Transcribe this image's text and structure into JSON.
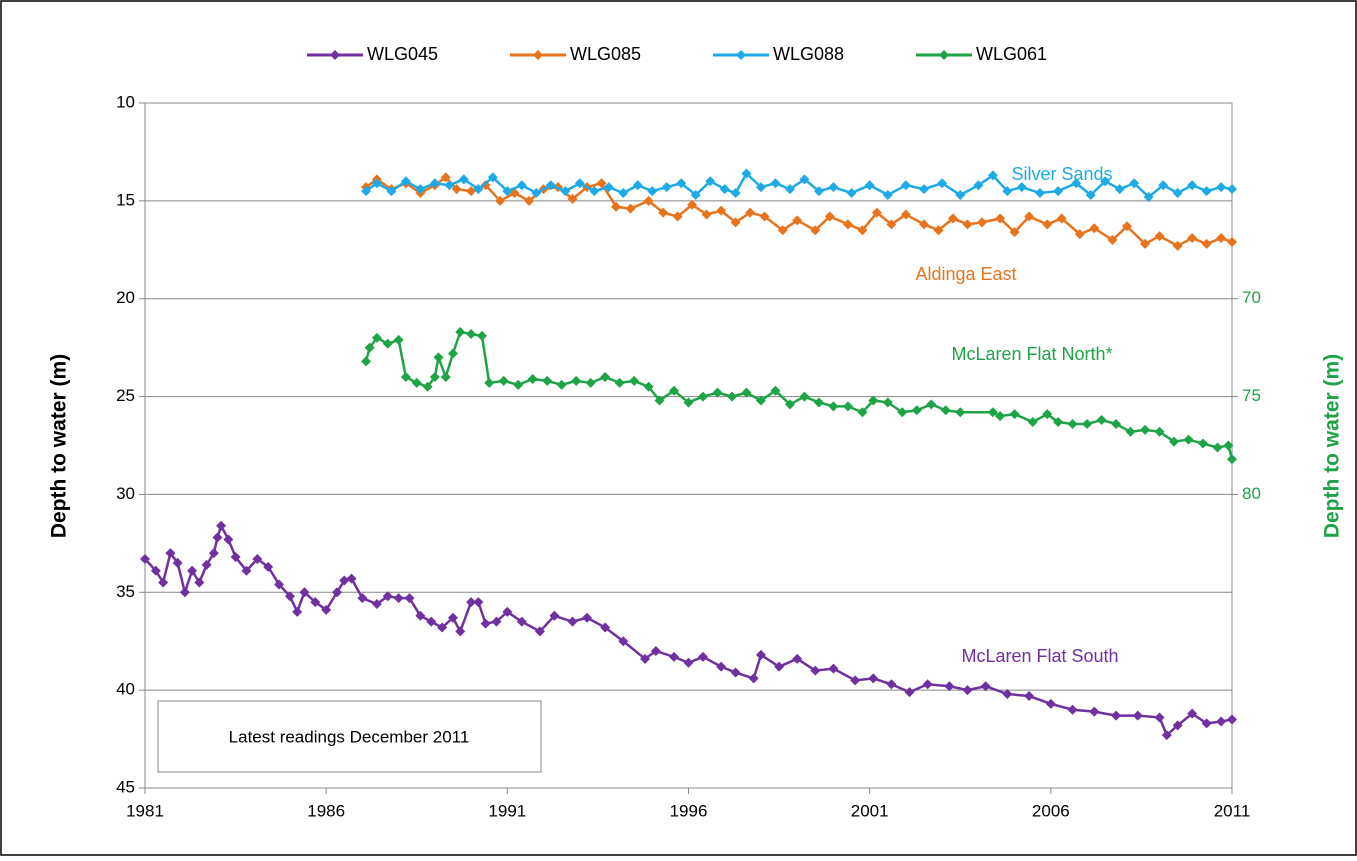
{
  "chart_data": {
    "type": "line",
    "y_axis_label": "Depth to water  (m)",
    "y2_axis_label": "Depth to water  (m)",
    "y2_axis_color": "#1fa347",
    "xlim": [
      1981,
      2011
    ],
    "xticks": [
      1981,
      1986,
      1991,
      1996,
      2001,
      2006,
      2011
    ],
    "ylim": [
      10,
      45
    ],
    "yticks": [
      10,
      15,
      20,
      25,
      30,
      35,
      40,
      45
    ],
    "y_inverted": true,
    "y2lim": [
      60,
      95
    ],
    "y2ticks": [
      70,
      75,
      80
    ],
    "y2_inverted": true,
    "grid": true,
    "legend": "top",
    "series": [
      {
        "name": "WLG045",
        "color": "#7030a0",
        "x": [
          1981,
          1981.3,
          1981.5,
          1981.7,
          1981.9,
          1982.1,
          1982.3,
          1982.5,
          1982.7,
          1982.9,
          1983.0,
          1983.1,
          1983.3,
          1983.5,
          1983.8,
          1984.1,
          1984.4,
          1984.7,
          1985.0,
          1985.2,
          1985.4,
          1985.7,
          1986.0,
          1986.3,
          1986.5,
          1986.7,
          1987.0,
          1987.4,
          1987.7,
          1988.0,
          1988.3,
          1988.6,
          1988.9,
          1989.2,
          1989.5,
          1989.7,
          1990.0,
          1990.2,
          1990.4,
          1990.7,
          1991.0,
          1991.4,
          1991.9,
          1992.3,
          1992.8,
          1993.2,
          1993.7,
          1994.2,
          1994.8,
          1995.1,
          1995.6,
          1996.0,
          1996.4,
          1996.9,
          1997.3,
          1997.8,
          1998.0,
          1998.5,
          1999.0,
          1999.5,
          2000.0,
          2000.6,
          2001.1,
          2001.6,
          2002.1,
          2002.6,
          2003.2,
          2003.7,
          2004.2,
          2004.8,
          2005.4,
          2006.0,
          2006.6,
          2007.2,
          2007.8,
          2008.4,
          2009.0,
          2009.2,
          2009.5,
          2009.9,
          2010.3,
          2010.7,
          2011.0
        ],
        "values": [
          33.3,
          33.9,
          34.5,
          33,
          33.5,
          35,
          33.9,
          34.5,
          33.6,
          33,
          32.2,
          31.6,
          32.3,
          33.2,
          33.9,
          33.3,
          33.7,
          34.6,
          35.2,
          36,
          35,
          35.5,
          35.9,
          35,
          34.4,
          34.3,
          35.3,
          35.6,
          35.2,
          35.3,
          35.3,
          36.2,
          36.5,
          36.8,
          36.3,
          37,
          35.5,
          35.5,
          36.6,
          36.5,
          36,
          36.5,
          37,
          36.2,
          36.5,
          36.3,
          36.8,
          37.5,
          38.4,
          38,
          38.3,
          38.6,
          38.3,
          38.8,
          39.1,
          39.4,
          38.2,
          38.8,
          38.4,
          39,
          38.9,
          39.5,
          39.4,
          39.7,
          40.1,
          39.7,
          39.8,
          40,
          39.8,
          40.2,
          40.3,
          40.7,
          41,
          41.1,
          41.3,
          41.3,
          41.4,
          42.3,
          41.8,
          41.2,
          41.7,
          41.6,
          41.5
        ]
      },
      {
        "name": "WLG085",
        "color": "#e8731c",
        "x": [
          1987.1,
          1987.4,
          1987.8,
          1988.2,
          1988.6,
          1989.0,
          1989.3,
          1989.6,
          1990.0,
          1990.4,
          1990.8,
          1991.2,
          1991.6,
          1992.0,
          1992.4,
          1992.8,
          1993.2,
          1993.6,
          1994.0,
          1994.4,
          1994.9,
          1995.3,
          1995.7,
          1996.1,
          1996.5,
          1996.9,
          1997.3,
          1997.7,
          1998.1,
          1998.6,
          1999.0,
          1999.5,
          1999.9,
          2000.4,
          2000.8,
          2001.2,
          2001.6,
          2002.0,
          2002.5,
          2002.9,
          2003.3,
          2003.7,
          2004.1,
          2004.6,
          2005.0,
          2005.4,
          2005.9,
          2006.3,
          2006.8,
          2007.2,
          2007.7,
          2008.1,
          2008.6,
          2009.0,
          2009.5,
          2009.9,
          2010.3,
          2010.7,
          2011.0
        ],
        "values": [
          14.3,
          13.9,
          14.4,
          14.1,
          14.6,
          14.2,
          13.8,
          14.4,
          14.5,
          14.2,
          15,
          14.6,
          15,
          14.4,
          14.3,
          14.9,
          14.3,
          14.1,
          15.3,
          15.4,
          15,
          15.6,
          15.8,
          15.2,
          15.7,
          15.5,
          16.1,
          15.6,
          15.8,
          16.5,
          16,
          16.5,
          15.8,
          16.2,
          16.5,
          15.6,
          16.2,
          15.7,
          16.2,
          16.5,
          15.9,
          16.2,
          16.1,
          15.9,
          16.6,
          15.8,
          16.2,
          15.9,
          16.7,
          16.4,
          17,
          16.3,
          17.2,
          16.8,
          17.3,
          16.9,
          17.2,
          16.9,
          17.1
        ]
      },
      {
        "name": "WLG088",
        "color": "#1eaae7",
        "x": [
          1987.1,
          1987.4,
          1987.8,
          1988.2,
          1988.6,
          1989.0,
          1989.4,
          1989.8,
          1990.2,
          1990.6,
          1991.0,
          1991.4,
          1991.8,
          1992.2,
          1992.6,
          1993.0,
          1993.4,
          1993.8,
          1994.2,
          1994.6,
          1995.0,
          1995.4,
          1995.8,
          1996.2,
          1996.6,
          1997.0,
          1997.3,
          1997.6,
          1998.0,
          1998.4,
          1998.8,
          1999.2,
          1999.6,
          2000.0,
          2000.5,
          2001.0,
          2001.5,
          2002.0,
          2002.5,
          2003.0,
          2003.5,
          2004.0,
          2004.4,
          2004.8,
          2005.2,
          2005.7,
          2006.2,
          2006.7,
          2007.1,
          2007.5,
          2007.9,
          2008.3,
          2008.7,
          2009.1,
          2009.5,
          2009.9,
          2010.3,
          2010.7,
          2011.0
        ],
        "values": [
          14.5,
          14.1,
          14.5,
          14,
          14.4,
          14.1,
          14.2,
          13.9,
          14.4,
          13.8,
          14.5,
          14.2,
          14.6,
          14.2,
          14.5,
          14.1,
          14.5,
          14.3,
          14.6,
          14.2,
          14.5,
          14.3,
          14.1,
          14.7,
          14,
          14.4,
          14.6,
          13.6,
          14.3,
          14.1,
          14.4,
          13.9,
          14.5,
          14.3,
          14.6,
          14.2,
          14.7,
          14.2,
          14.4,
          14.1,
          14.7,
          14.2,
          13.7,
          14.5,
          14.3,
          14.6,
          14.5,
          14.1,
          14.7,
          14,
          14.4,
          14.1,
          14.8,
          14.2,
          14.6,
          14.2,
          14.5,
          14.3,
          14.4
        ]
      },
      {
        "name": "WLG061",
        "color": "#1fa347",
        "axis": "y2",
        "x": [
          1987.1,
          1987.2,
          1987.4,
          1987.7,
          1988.0,
          1988.2,
          1988.5,
          1988.8,
          1989.0,
          1989.1,
          1989.3,
          1989.5,
          1989.7,
          1990.0,
          1990.3,
          1990.5,
          1990.9,
          1991.3,
          1991.7,
          1992.1,
          1992.5,
          1992.9,
          1993.3,
          1993.7,
          1994.1,
          1994.5,
          1994.9,
          1995.2,
          1995.6,
          1996.0,
          1996.4,
          1996.8,
          1997.2,
          1997.6,
          1998.0,
          1998.4,
          1998.8,
          1999.2,
          1999.6,
          2000.0,
          2000.4,
          2000.8,
          2001.1,
          2001.5,
          2001.9,
          2002.3,
          2002.7,
          2003.1,
          2003.5,
          2004.4,
          2004.6,
          2005.0,
          2005.5,
          2005.9,
          2006.2,
          2006.6,
          2007.0,
          2007.4,
          2007.8,
          2008.2,
          2008.6,
          2009.0,
          2009.4,
          2009.8,
          2010.2,
          2010.6,
          2010.9,
          2011.0
        ],
        "values": [
          73.2,
          72.5,
          72,
          72.3,
          72.1,
          74,
          74.3,
          74.5,
          74,
          73,
          74,
          72.8,
          71.7,
          71.8,
          71.9,
          74.3,
          74.2,
          74.4,
          74.1,
          74.2,
          74.4,
          74.2,
          74.3,
          74,
          74.3,
          74.2,
          74.5,
          75.2,
          74.7,
          75.3,
          75,
          74.8,
          75,
          74.8,
          75.2,
          74.7,
          75.4,
          75,
          75.3,
          75.5,
          75.5,
          75.8,
          75.2,
          75.3,
          75.8,
          75.7,
          75.4,
          75.7,
          75.8,
          75.8,
          76,
          75.9,
          76.3,
          75.9,
          76.3,
          76.4,
          76.4,
          76.2,
          76.4,
          76.8,
          76.7,
          76.8,
          77.3,
          77.2,
          77.4,
          77.6,
          77.5,
          78.2
        ]
      }
    ],
    "annotations": [
      {
        "text": "Silver Sands",
        "color": "#1eaae7"
      },
      {
        "text": "Aldinga East",
        "color": "#e8731c"
      },
      {
        "text": "McLaren Flat North*",
        "color": "#1fa347"
      },
      {
        "text": "McLaren Flat South",
        "color": "#7030a0"
      }
    ],
    "note": "Latest readings December 2011"
  }
}
